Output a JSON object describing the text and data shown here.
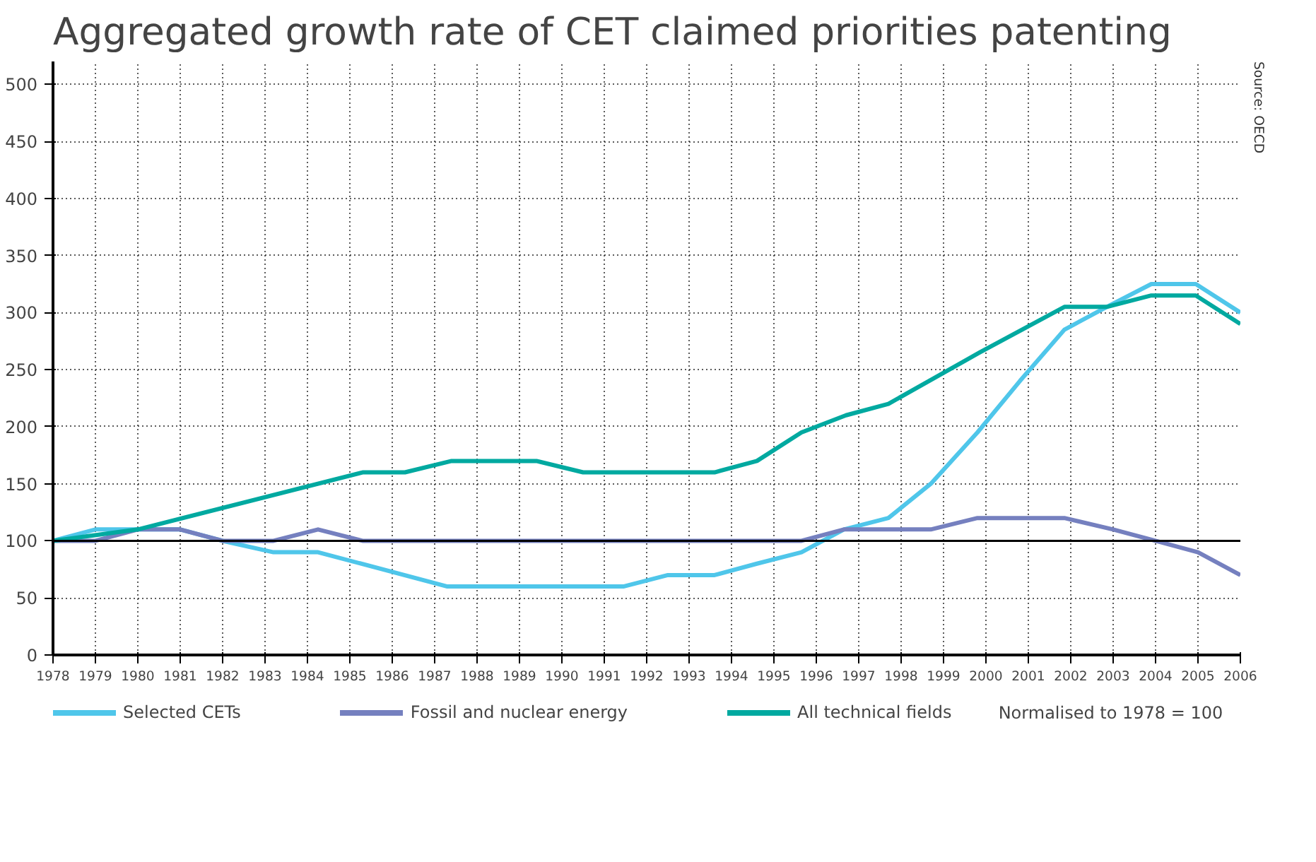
{
  "chart_data": {
    "type": "line",
    "title": "Aggregated growth rate of CET claimed priorities patenting",
    "xlim": [
      1978,
      2006
    ],
    "xticks": [
      1978,
      1979,
      1980,
      1981,
      1982,
      1983,
      1984,
      1985,
      1986,
      1987,
      1988,
      1989,
      1990,
      1991,
      1992,
      1993,
      1994,
      1995,
      1996,
      1997,
      1998,
      1999,
      2000,
      2001,
      2002,
      2003,
      2004,
      2005,
      2006
    ],
    "ylim": [
      0,
      520
    ],
    "yticks": [
      0,
      50,
      100,
      150,
      200,
      250,
      300,
      350,
      400,
      450,
      500
    ],
    "grid": true,
    "legend": "bottom",
    "ref_lines": [
      {
        "axis": "y",
        "value": 100,
        "color": "#000000"
      }
    ],
    "annotations": [
      "Normalised to 1978 = 100",
      "Source: OECD"
    ],
    "series": [
      {
        "name": "Selected CETs",
        "color": "#4fc6ea",
        "x": [
          1978,
          1979,
          1981,
          1982,
          1983.2,
          1984.25,
          1987.3,
          1991.45,
          1992.5,
          1993.6,
          1994.6,
          1995.65,
          1996.65,
          1997.7,
          1998.7,
          1999.8,
          2000.8,
          2001.85,
          2002.85,
          2003.9,
          2004.95,
          2006
        ],
        "values": [
          100,
          110,
          110,
          100,
          90,
          90,
          60,
          60,
          70,
          70,
          80,
          90,
          110,
          120,
          150,
          195,
          240,
          285,
          305,
          325,
          325,
          300
        ]
      },
      {
        "name": "Fossil and nuclear energy",
        "color": "#7580bf",
        "x": [
          1978,
          1979,
          1980,
          1981,
          1982,
          1983.2,
          1984.25,
          1985.3,
          1995.65,
          1996.65,
          1998.7,
          1999.8,
          2001.85,
          2003,
          2004,
          2005,
          2006
        ],
        "values": [
          100,
          100,
          110,
          110,
          100,
          100,
          110,
          100,
          100,
          110,
          110,
          120,
          120,
          110,
          100,
          90,
          70
        ]
      },
      {
        "name": "All technical fields",
        "color": "#00a9a0",
        "x": [
          1978,
          1980,
          1985.3,
          1986.3,
          1987.4,
          1989.4,
          1990.5,
          1993.6,
          1994.6,
          1995.65,
          1996.7,
          1997.7,
          1999.85,
          2001.85,
          2002.85,
          2003.9,
          2004.95,
          2006
        ],
        "values": [
          100,
          110,
          160,
          160,
          170,
          170,
          160,
          160,
          170,
          195,
          210,
          220,
          265,
          305,
          305,
          315,
          315,
          290
        ]
      }
    ]
  }
}
